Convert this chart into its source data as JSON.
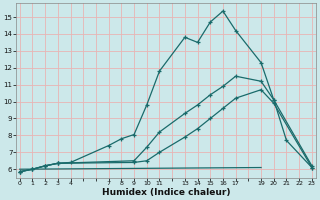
{
  "xlabel": "Humidex (Indice chaleur)",
  "bg_color": "#cce8ea",
  "grid_color": "#e8b4b4",
  "line_color": "#1a6b6b",
  "xticks": [
    0,
    1,
    2,
    3,
    4,
    7,
    8,
    9,
    10,
    11,
    13,
    14,
    15,
    16,
    17,
    19,
    20,
    21,
    22,
    23
  ],
  "yticks": [
    6,
    7,
    8,
    9,
    10,
    11,
    12,
    13,
    14,
    15
  ],
  "xlim": [
    -0.3,
    23.3
  ],
  "ylim": [
    5.5,
    15.8
  ],
  "lines": [
    {
      "x": [
        0,
        1,
        2,
        3,
        4,
        7,
        8,
        9,
        10,
        11,
        13,
        14,
        15,
        16,
        17,
        19,
        20,
        21,
        23
      ],
      "y": [
        5.85,
        6.0,
        6.2,
        6.35,
        6.4,
        7.4,
        7.8,
        8.05,
        9.8,
        11.8,
        13.8,
        13.5,
        14.7,
        15.35,
        14.2,
        12.3,
        10.1,
        7.7,
        6.1
      ]
    },
    {
      "x": [
        0,
        1,
        2,
        3,
        9,
        10,
        11,
        13,
        14,
        15,
        16,
        17,
        19,
        20,
        23
      ],
      "y": [
        5.85,
        6.0,
        6.2,
        6.35,
        6.5,
        7.3,
        8.2,
        9.3,
        9.8,
        10.4,
        10.9,
        11.5,
        11.2,
        10.1,
        6.2
      ]
    },
    {
      "x": [
        0,
        1,
        2,
        3,
        9,
        10,
        11,
        13,
        14,
        15,
        16,
        17,
        19,
        20,
        23
      ],
      "y": [
        5.85,
        6.0,
        6.2,
        6.35,
        6.4,
        6.5,
        7.0,
        7.9,
        8.4,
        9.0,
        9.6,
        10.2,
        10.7,
        9.9,
        6.1
      ]
    },
    {
      "x": [
        0,
        19
      ],
      "y": [
        6.0,
        6.1
      ]
    }
  ]
}
